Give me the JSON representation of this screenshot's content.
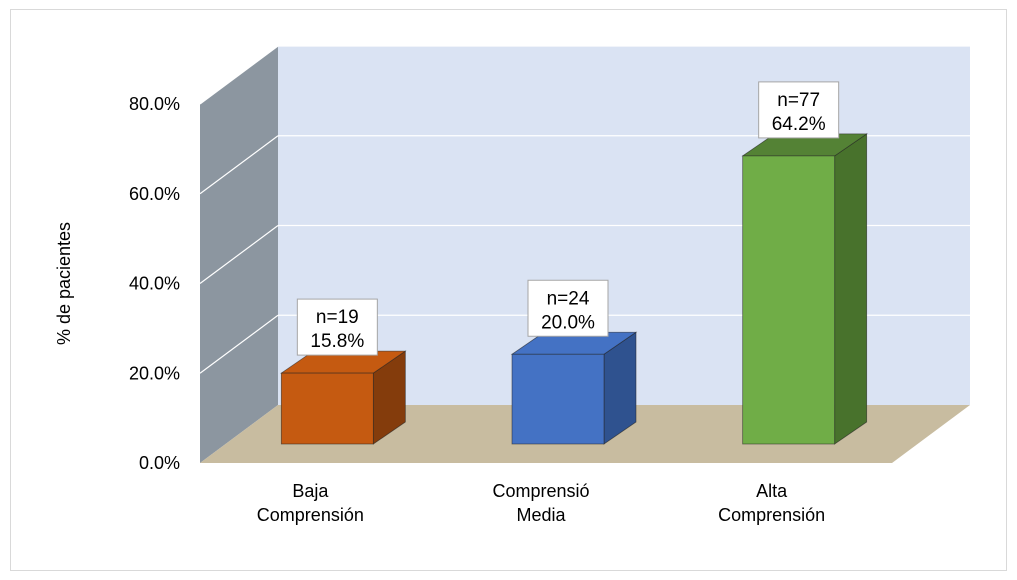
{
  "chart_data": {
    "type": "bar",
    "style": "3d",
    "ylabel": "% de pacientes",
    "ylim": [
      0,
      80
    ],
    "yticks": [
      "0.0%",
      "20.0%",
      "40.0%",
      "60.0%",
      "80.0%"
    ],
    "grid": true,
    "categories": [
      [
        "Baja",
        "Comprensión"
      ],
      [
        "Comprensió",
        "Media"
      ],
      [
        "Alta",
        "Comprensión"
      ]
    ],
    "values": [
      15.8,
      20.0,
      64.2
    ],
    "counts": [
      "n=19",
      "n=24",
      "n=77"
    ],
    "data_labels": [
      "15.8%",
      "20.0%",
      "64.2%"
    ],
    "colors": {
      "bars": [
        "#c55a11",
        "#4472c4",
        "#70ad47"
      ],
      "bar_sides": [
        "#843c0c",
        "#2f528f",
        "#48722c"
      ],
      "bar_tops": [
        "#c55a11",
        "#4472c4",
        "#548235"
      ],
      "back_wall": "#dae3f3",
      "side_wall": "#8c96a0",
      "floor": "#c8bca0",
      "gridline": "#ffffff"
    }
  }
}
